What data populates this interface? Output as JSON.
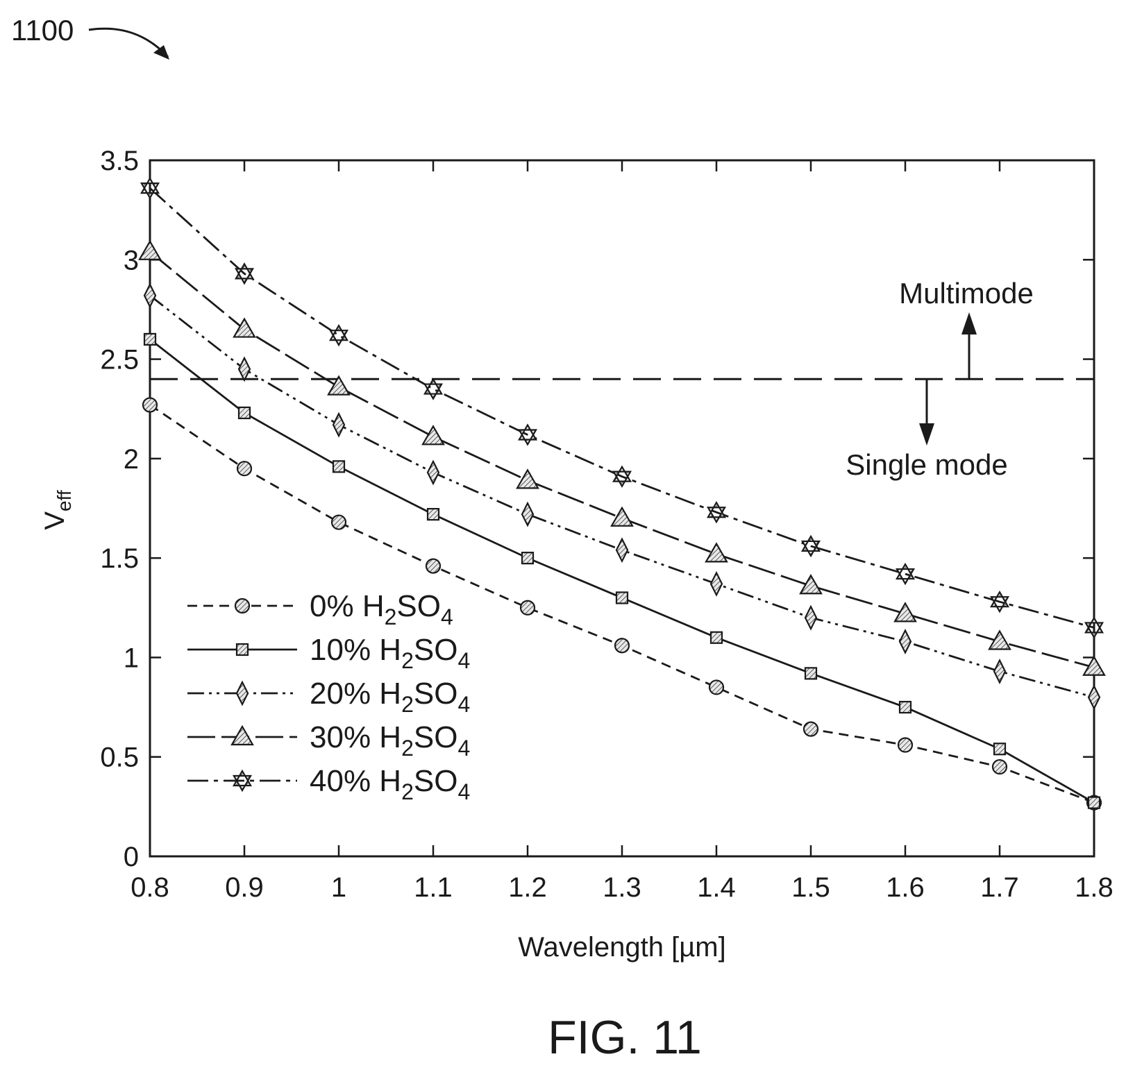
{
  "figure": {
    "reference_number": "1100",
    "caption": "FIG. 11"
  },
  "annotations": {
    "multimode": "Multimode",
    "single_mode": "Single mode"
  },
  "chart_data": {
    "type": "line",
    "xlabel": "Wavelength [µm]",
    "ylabel_main": "V",
    "ylabel_sub": "eff",
    "xlim": [
      0.8,
      1.8
    ],
    "ylim": [
      0,
      3.5
    ],
    "x_ticks": [
      "0.8",
      "0.9",
      "1",
      "1.1",
      "1.2",
      "1.3",
      "1.4",
      "1.5",
      "1.6",
      "1.7",
      "1.8"
    ],
    "y_ticks": [
      "0",
      "0.5",
      "1",
      "1.5",
      "2",
      "2.5",
      "3",
      "3.5"
    ],
    "grid": false,
    "legend_position": "lower-left",
    "threshold": {
      "y": 2.4,
      "style": "dashed"
    },
    "x": [
      0.8,
      0.9,
      1.0,
      1.1,
      1.2,
      1.3,
      1.4,
      1.5,
      1.6,
      1.7,
      1.8
    ],
    "series": [
      {
        "name": "0% H2SO4",
        "label_pre": "0% H",
        "label_sub1": "2",
        "label_mid": "SO",
        "label_sub2": "4",
        "marker": "circle",
        "dash": "dashed",
        "values": [
          2.27,
          1.95,
          1.68,
          1.46,
          1.25,
          1.06,
          0.85,
          0.64,
          0.56,
          0.45,
          0.27
        ]
      },
      {
        "name": "10% H2SO4",
        "label_pre": "10% H",
        "label_sub1": "2",
        "label_mid": "SO",
        "label_sub2": "4",
        "marker": "square",
        "dash": "solid",
        "values": [
          2.6,
          2.23,
          1.96,
          1.72,
          1.5,
          1.3,
          1.1,
          0.92,
          0.75,
          0.54,
          0.27
        ]
      },
      {
        "name": "20% H2SO4",
        "label_pre": "20% H",
        "label_sub1": "2",
        "label_mid": "SO",
        "label_sub2": "4",
        "marker": "diamond",
        "dash": "dash-dot-dot",
        "values": [
          2.82,
          2.45,
          2.17,
          1.93,
          1.72,
          1.54,
          1.37,
          1.2,
          1.08,
          0.93,
          0.8
        ]
      },
      {
        "name": "30% H2SO4",
        "label_pre": "30% H",
        "label_sub1": "2",
        "label_mid": "SO",
        "label_sub2": "4",
        "marker": "triangle",
        "dash": "long-dash",
        "values": [
          3.04,
          2.65,
          2.36,
          2.11,
          1.89,
          1.7,
          1.52,
          1.36,
          1.22,
          1.08,
          0.95
        ]
      },
      {
        "name": "40% H2SO4",
        "label_pre": "40% H",
        "label_sub1": "2",
        "label_mid": "SO",
        "label_sub2": "4",
        "marker": "star",
        "dash": "dash-dot",
        "values": [
          3.36,
          2.93,
          2.62,
          2.35,
          2.12,
          1.91,
          1.73,
          1.56,
          1.42,
          1.28,
          1.15
        ]
      }
    ]
  }
}
